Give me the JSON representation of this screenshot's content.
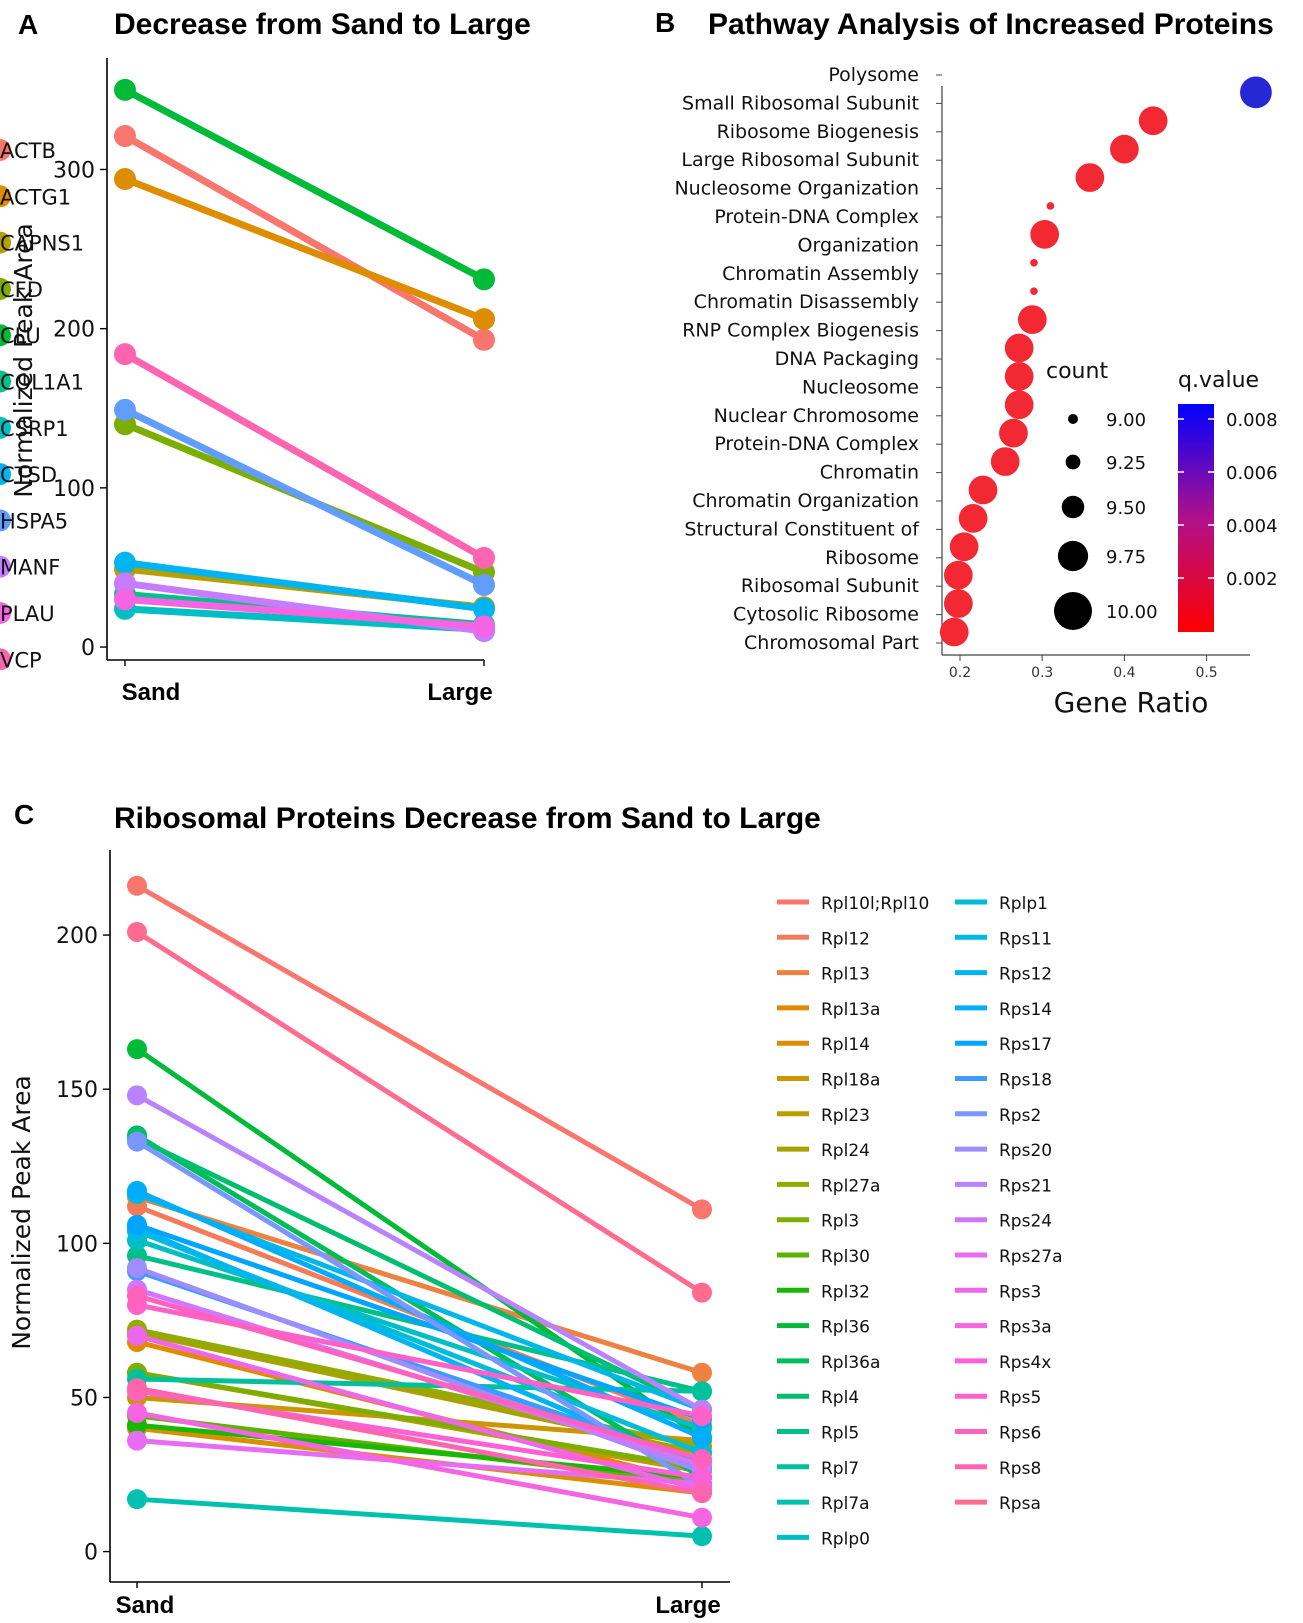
{
  "panels": {
    "a": {
      "letter": "A",
      "title": "Decrease from Sand to Large"
    },
    "b": {
      "letter": "B",
      "title": "Pathway Analysis of Increased Proteins"
    },
    "c": {
      "letter": "C",
      "title": "Ribosomal Proteins Decrease from Sand to Large"
    }
  },
  "chart_data": [
    {
      "type": "line",
      "title": "Decrease from Sand to Large",
      "xlabel": "",
      "ylabel": "Normalized Peak Area",
      "categories": [
        "Sand",
        "Large"
      ],
      "ylim": [
        -5,
        365
      ],
      "yticks": [
        0,
        100,
        200,
        300
      ],
      "legend": "right",
      "grid": false,
      "series": [
        {
          "name": "ACTB",
          "color": "#F8766D",
          "values": [
            321,
            193
          ]
        },
        {
          "name": "ACTG1",
          "color": "#DE8C00",
          "values": [
            294,
            206
          ]
        },
        {
          "name": "CAPNS1",
          "color": "#B79F00",
          "values": [
            49,
            25
          ]
        },
        {
          "name": "CFD",
          "color": "#7CAE00",
          "values": [
            140,
            47
          ]
        },
        {
          "name": "CLU",
          "color": "#00BA38",
          "values": [
            350,
            231
          ]
        },
        {
          "name": "COL1A1",
          "color": "#00C08B",
          "values": [
            33,
            14
          ]
        },
        {
          "name": "CSRP1",
          "color": "#00BFC4",
          "values": [
            24,
            11
          ]
        },
        {
          "name": "CTSD",
          "color": "#00B4F0",
          "values": [
            53,
            24
          ]
        },
        {
          "name": "HSPA5",
          "color": "#619CFF",
          "values": [
            149,
            39
          ]
        },
        {
          "name": "MANF",
          "color": "#C77CFF",
          "values": [
            40,
            10
          ]
        },
        {
          "name": "PLAU",
          "color": "#F564E3",
          "values": [
            30,
            13
          ]
        },
        {
          "name": "VCP",
          "color": "#FF64B0",
          "values": [
            184,
            56
          ]
        }
      ]
    },
    {
      "type": "scatter",
      "title": "Pathway Analysis of Increased Proteins",
      "xlabel": "Gene Ratio",
      "ylabel": "",
      "xlim": [
        0.18,
        0.58
      ],
      "xticks": [
        "0.2",
        "0.3",
        "0.4",
        "0.5"
      ],
      "terms": [
        "Polysome",
        "Small Ribosomal Subunit",
        "Ribosome Biogenesis",
        "Large Ribosomal Subunit",
        "Nucleosome Organization",
        "Protein-DNA Complex",
        "Organization",
        "Chromatin Assembly",
        "Chromatin Disassembly",
        "RNP Complex Biogenesis",
        "DNA Packaging",
        "Nucleosome",
        "Nuclear Chromosome",
        "Protein-DNA Complex",
        "Chromatin",
        "Chromatin Organization",
        "Structural Constituent of",
        "Ribosome",
        "Ribosomal Subunit",
        "Cytosolic Ribosome",
        "Chromosomal Part"
      ],
      "points": [
        {
          "row": 0.4,
          "x": 0.56,
          "count": 9.8,
          "q": 0.0082
        },
        {
          "row": 1.4,
          "x": 0.435,
          "count": 9.7,
          "q": 0.0005
        },
        {
          "row": 2.4,
          "x": 0.4,
          "count": 9.7,
          "q": 0.0005
        },
        {
          "row": 3.4,
          "x": 0.358,
          "count": 9.7,
          "q": 0.0005
        },
        {
          "row": 4.4,
          "x": 0.31,
          "count": 9.02,
          "q": 0.0005
        },
        {
          "row": 5.4,
          "x": 0.303,
          "count": 9.7,
          "q": 0.0005
        },
        {
          "row": 6.4,
          "x": 0.29,
          "count": 9.02,
          "q": 0.0005
        },
        {
          "row": 7.4,
          "x": 0.29,
          "count": 9.02,
          "q": 0.0005
        },
        {
          "row": 8.4,
          "x": 0.288,
          "count": 9.7,
          "q": 0.0005
        },
        {
          "row": 9.4,
          "x": 0.272,
          "count": 9.7,
          "q": 0.0005
        },
        {
          "row": 10.4,
          "x": 0.272,
          "count": 9.7,
          "q": 0.0005
        },
        {
          "row": 11.4,
          "x": 0.272,
          "count": 9.7,
          "q": 0.0005
        },
        {
          "row": 12.4,
          "x": 0.265,
          "count": 9.7,
          "q": 0.0005
        },
        {
          "row": 13.4,
          "x": 0.255,
          "count": 9.7,
          "q": 0.0005
        },
        {
          "row": 14.4,
          "x": 0.228,
          "count": 9.7,
          "q": 0.0005
        },
        {
          "row": 15.4,
          "x": 0.216,
          "count": 9.7,
          "q": 0.0005
        },
        {
          "row": 16.4,
          "x": 0.205,
          "count": 9.7,
          "q": 0.0005
        },
        {
          "row": 17.4,
          "x": 0.198,
          "count": 9.7,
          "q": 0.0005
        },
        {
          "row": 18.4,
          "x": 0.198,
          "count": 9.7,
          "q": 0.0005
        },
        {
          "row": 19.4,
          "x": 0.193,
          "count": 9.7,
          "q": 0.0005
        }
      ],
      "size_legend": {
        "title": "count",
        "values": [
          9.0,
          9.25,
          9.5,
          9.75,
          10.0
        ],
        "labels": [
          "9.00",
          "9.25",
          "9.50",
          "9.75",
          "10.00"
        ]
      },
      "color_legend": {
        "title": "q.value",
        "low_color": "#FF0000",
        "high_color": "#0000FF",
        "labels": [
          "0.008",
          "0.006",
          "0.004",
          "0.002"
        ]
      }
    },
    {
      "type": "line",
      "title": "Ribosomal Proteins Decrease from Sand to Large",
      "xlabel": "",
      "ylabel": "Normalized Peak Area",
      "categories": [
        "Sand",
        "Large"
      ],
      "ylim": [
        -5,
        225
      ],
      "yticks": [
        0,
        50,
        100,
        150,
        200
      ],
      "legend": "right",
      "grid": false,
      "series": [
        {
          "name": "Rpl10l;Rpl10",
          "color": "#F8766D",
          "values": [
            216,
            111
          ]
        },
        {
          "name": "Rpl12",
          "color": "#F37B59",
          "values": [
            112,
            41
          ]
        },
        {
          "name": "Rpl13",
          "color": "#ED8141",
          "values": [
            115,
            58
          ]
        },
        {
          "name": "Rpl13a",
          "color": "#E38900",
          "values": [
            68,
            22
          ]
        },
        {
          "name": "Rpl14",
          "color": "#D89000",
          "values": [
            40,
            19
          ]
        },
        {
          "name": "Rpl18a",
          "color": "#CB9600",
          "values": [
            50,
            36
          ]
        },
        {
          "name": "Rpl23",
          "color": "#BB9D00",
          "values": [
            58,
            26
          ]
        },
        {
          "name": "Rpl24",
          "color": "#A8A200",
          "values": [
            71,
            32
          ]
        },
        {
          "name": "Rpl27a",
          "color": "#93AA00",
          "values": [
            72,
            34
          ]
        },
        {
          "name": "Rpl3",
          "color": "#7CAE00",
          "values": [
            58,
            27
          ]
        },
        {
          "name": "Rpl30",
          "color": "#5BB300",
          "values": [
            44,
            22
          ]
        },
        {
          "name": "Rpl32",
          "color": "#19B700",
          "values": [
            41,
            24
          ]
        },
        {
          "name": "Rpl36",
          "color": "#00BA38",
          "values": [
            163,
            37
          ]
        },
        {
          "name": "Rpl36a",
          "color": "#00BC59",
          "values": [
            135,
            24
          ]
        },
        {
          "name": "Rpl4",
          "color": "#00BE70",
          "values": [
            134,
            46
          ]
        },
        {
          "name": "Rpl5",
          "color": "#00C087",
          "values": [
            96,
            52
          ]
        },
        {
          "name": "Rpl7",
          "color": "#00C19C",
          "values": [
            56,
            52
          ]
        },
        {
          "name": "Rpl7a",
          "color": "#00C1AF",
          "values": [
            17,
            5
          ]
        },
        {
          "name": "Rplp0",
          "color": "#00BFC4",
          "values": [
            101,
            40
          ]
        },
        {
          "name": "Rplp1",
          "color": "#00BCD8",
          "values": [
            104,
            32
          ]
        },
        {
          "name": "Rps11",
          "color": "#00B8E7",
          "values": [
            116,
            46
          ]
        },
        {
          "name": "Rps12",
          "color": "#00B4F0",
          "values": [
            105,
            27
          ]
        },
        {
          "name": "Rps14",
          "color": "#00ADFA",
          "values": [
            117,
            37
          ]
        },
        {
          "name": "Rps17",
          "color": "#00A5FF",
          "values": [
            106,
            43
          ]
        },
        {
          "name": "Rps18",
          "color": "#3D9BFF",
          "values": [
            91,
            29
          ]
        },
        {
          "name": "Rps2",
          "color": "#7997FF",
          "values": [
            133,
            21
          ]
        },
        {
          "name": "Rps20",
          "color": "#9F8CFF",
          "values": [
            92,
            26
          ]
        },
        {
          "name": "Rps21",
          "color": "#B983FF",
          "values": [
            148,
            46
          ]
        },
        {
          "name": "Rps24",
          "color": "#CF78FF",
          "values": [
            85,
            28
          ]
        },
        {
          "name": "Rps27a",
          "color": "#E76BF3",
          "values": [
            36,
            22
          ]
        },
        {
          "name": "Rps3",
          "color": "#EE67EA",
          "values": [
            70,
            20
          ]
        },
        {
          "name": "Rps3a",
          "color": "#F564E3",
          "values": [
            45,
            11
          ]
        },
        {
          "name": "Rps4x",
          "color": "#FB61D7",
          "values": [
            52,
            24
          ]
        },
        {
          "name": "Rps5",
          "color": "#FF61C9",
          "values": [
            80,
            44
          ]
        },
        {
          "name": "Rps6",
          "color": "#FF62BC",
          "values": [
            83,
            30
          ]
        },
        {
          "name": "Rps8",
          "color": "#FF65AE",
          "values": [
            53,
            19
          ]
        },
        {
          "name": "Rpsa",
          "color": "#FF6C90",
          "values": [
            201,
            84
          ]
        }
      ]
    }
  ]
}
